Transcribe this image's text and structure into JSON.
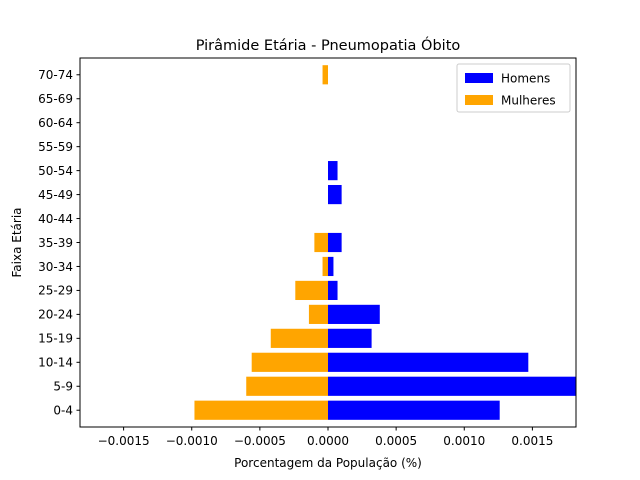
{
  "chart_data": {
    "type": "bar",
    "orientation": "horizontal",
    "title": "Pirâmide Etária - Pneumopatia Óbito",
    "xlabel": "Porcentagem da População (%)",
    "ylabel": "Faixa Etária",
    "categories": [
      "0-4",
      "5-9",
      "10-14",
      "15-19",
      "20-24",
      "25-29",
      "30-34",
      "35-39",
      "40-44",
      "45-49",
      "50-54",
      "55-59",
      "60-64",
      "65-69",
      "70-74"
    ],
    "series": [
      {
        "name": "Homens",
        "color": "#0000ff",
        "values": [
          0.00126,
          0.00185,
          0.00147,
          0.00032,
          0.00038,
          7e-05,
          4e-05,
          0.0001,
          0.0,
          0.0001,
          7e-05,
          0.0,
          0.0,
          0.0,
          0.0
        ]
      },
      {
        "name": "Mulheres",
        "color": "#ffa500",
        "values": [
          -0.00098,
          -0.0006,
          -0.00056,
          -0.00042,
          -0.00014,
          -0.00024,
          -4e-05,
          -0.0001,
          0.0,
          0.0,
          0.0,
          0.0,
          0.0,
          0.0,
          -4e-05
        ]
      }
    ],
    "xlim": [
      -0.00182,
      0.00182
    ],
    "xticks": [
      -0.0015,
      -0.001,
      -0.0005,
      0.0,
      0.0005,
      0.001,
      0.0015
    ],
    "xtick_labels": [
      "−0.0015",
      "−0.0010",
      "−0.0005",
      "0.0000",
      "0.0005",
      "0.0010",
      "0.0015"
    ],
    "grid": false,
    "legend_position": "top-right"
  }
}
